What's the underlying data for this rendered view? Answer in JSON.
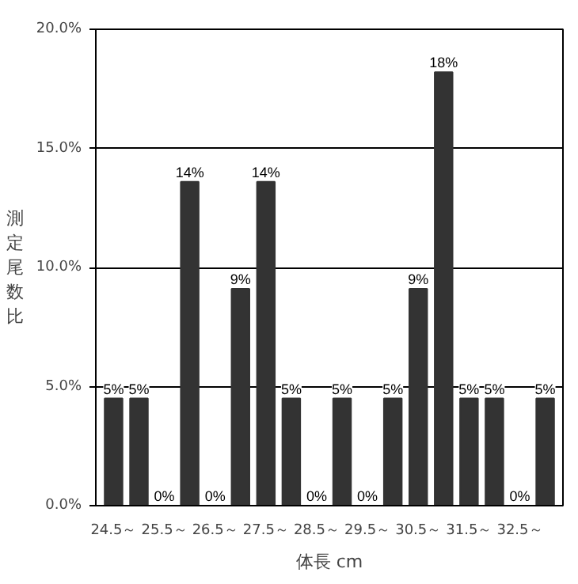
{
  "chart_data": {
    "type": "bar",
    "xlabel": "体長 cm",
    "ylabel": "測定尾数比",
    "categories": [
      "24.5～",
      null,
      "25.5～",
      null,
      "26.5～",
      null,
      "27.5～",
      null,
      "28.5～",
      null,
      "29.5～",
      null,
      "30.5～",
      null,
      "31.5～",
      null,
      "32.5～",
      null
    ],
    "values": [
      4.5,
      4.5,
      0,
      13.6,
      0,
      9.1,
      13.6,
      4.5,
      0,
      4.5,
      0,
      4.5,
      9.1,
      18.2,
      4.5,
      4.5,
      0,
      4.5
    ],
    "value_labels": [
      "5%",
      "5%",
      "0%",
      "14%",
      "0%",
      "9%",
      "14%",
      "5%",
      "0%",
      "5%",
      "0%",
      "5%",
      "9%",
      "18%",
      "5%",
      "5%",
      "0%",
      "5%"
    ],
    "color": "#333333",
    "ylim": [
      0,
      20
    ],
    "yticks": [
      {
        "value": 0,
        "label": "0.0%"
      },
      {
        "value": 5,
        "label": "5.0%"
      },
      {
        "value": 10,
        "label": "10.0%"
      },
      {
        "value": 15,
        "label": "15.0%"
      },
      {
        "value": 20,
        "label": "20.0%"
      }
    ],
    "grid": "y"
  }
}
